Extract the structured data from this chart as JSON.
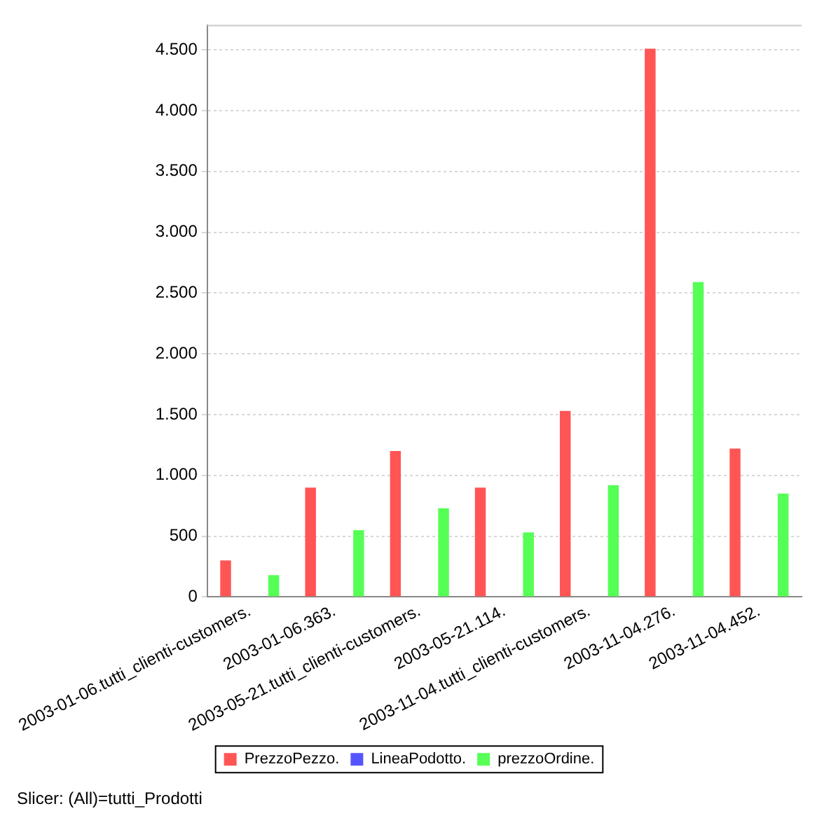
{
  "chart_data": {
    "type": "bar",
    "categories": [
      "2003-01-06.tutti_clienti-customers.",
      "2003-01-06.363.",
      "2003-05-21.tutti_clienti-customers.",
      "2003-05-21.114.",
      "2003-11-04.tutti_clienti-customers.",
      "2003-11-04.276.",
      "2003-11-04.452."
    ],
    "series": [
      {
        "name": "PrezzoPezzo.",
        "color": "#ff5555",
        "values": [
          300,
          900,
          1200,
          900,
          1530,
          4510,
          1220
        ]
      },
      {
        "name": "LineaPodotto.",
        "color": "#5555ff",
        "values": [
          0,
          0,
          0,
          0,
          0,
          0,
          0
        ]
      },
      {
        "name": "prezzoOrdine.",
        "color": "#55ff55",
        "values": [
          180,
          550,
          730,
          530,
          920,
          2590,
          850
        ]
      }
    ],
    "ylim": [
      0,
      4700
    ],
    "yticks": [
      0,
      500,
      {
        "value": 1000,
        "label": "1.000"
      },
      {
        "value": 1500,
        "label": "1.500"
      },
      {
        "value": 2000,
        "label": "2.000"
      },
      {
        "value": 2500,
        "label": "2.500"
      },
      {
        "value": 3000,
        "label": "3.000"
      },
      {
        "value": 3500,
        "label": "3.500"
      },
      {
        "value": 4000,
        "label": "4.000"
      },
      {
        "value": 4500,
        "label": "4.500"
      }
    ],
    "grid": "y",
    "legend": "bottom",
    "annotations": [
      "Slicer: (All)=tutti_Prodotti"
    ]
  }
}
